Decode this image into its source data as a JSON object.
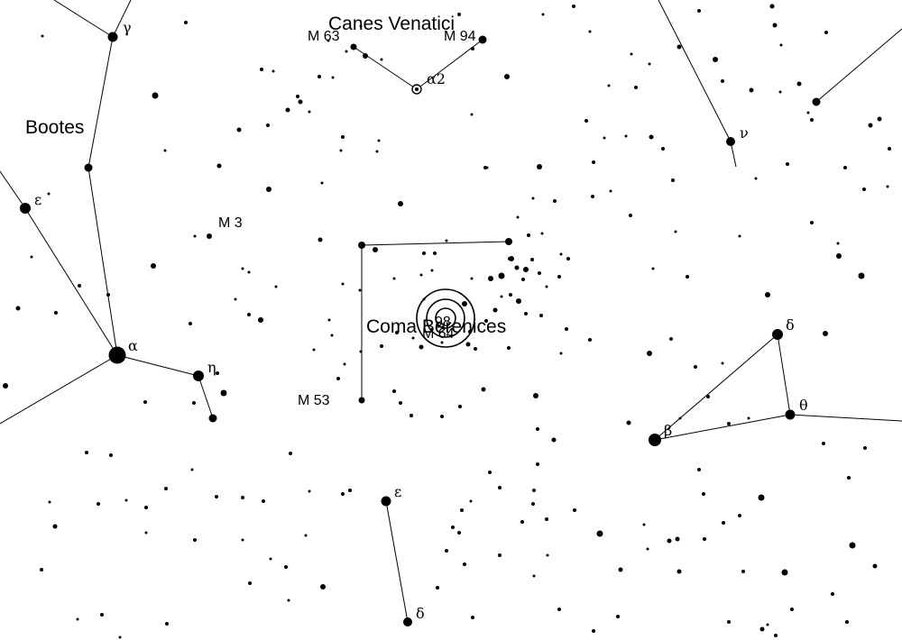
{
  "map": {
    "constellations": {
      "canes_venatici": "Canes Venatici",
      "bootes": "Bootes",
      "coma_berenices": "Coma Berenices"
    },
    "objects": {
      "m63": "M 63",
      "m94": "M 94",
      "m3": "M 3",
      "m53": "M 53",
      "m64": "M 64",
      "center_mark": "98"
    },
    "stars": {
      "gamma_boo": "γ",
      "epsilon_boo": "ε",
      "alpha_boo": "α",
      "eta_boo": "η",
      "alpha2_cvn": "α2",
      "nu_uma": "ν",
      "delta_leo": "δ",
      "theta_leo": "θ",
      "beta_leo": "β",
      "epsilon_vir": "ε",
      "delta_vir": "δ"
    },
    "colors": {
      "background": "#ffffff",
      "ink": "#000000"
    },
    "target_marker": "bullseye-target"
  }
}
